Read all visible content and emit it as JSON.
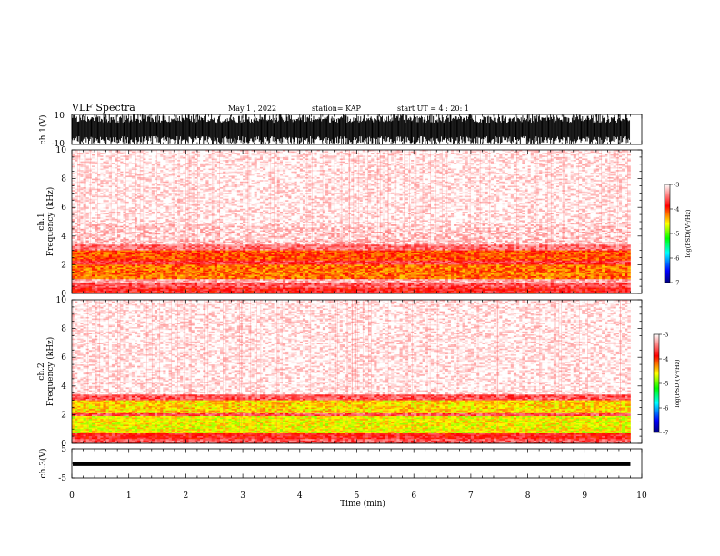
{
  "header": {
    "title": "VLF Spectra",
    "date": "May 1 , 2022",
    "station": "station= KAP",
    "start": "start  UT =   4 : 20: 1"
  },
  "chart_data": [
    {
      "type": "line",
      "name": "ch1-waveform",
      "ylabel": "ch.1(V)",
      "ylim": [
        -10,
        10
      ],
      "yticks": [
        "10",
        "-10"
      ],
      "xlim": [
        0,
        10
      ],
      "x_data_end": 9.8,
      "envelope_v": [
        -10,
        10
      ],
      "description_of_signal": "saturated broadband"
    },
    {
      "type": "heatmap",
      "name": "ch1-spectrogram",
      "ylabel": "ch.1\nFrequency  (kHz)",
      "ylim": [
        0,
        10
      ],
      "yticks": [
        "0",
        "2",
        "4",
        "6",
        "8",
        "10"
      ],
      "xlim": [
        0,
        10
      ],
      "x_data_end": 9.8,
      "colorbar": {
        "label": "log(PSD)(V²/Hz)",
        "range": [
          -7,
          -3
        ],
        "ticks": [
          "-3",
          "-4",
          "-5",
          "-6",
          "-7"
        ]
      },
      "bands_khz": [
        {
          "from": 0.0,
          "to": 0.35,
          "level": -3.8
        },
        {
          "from": 0.35,
          "to": 0.7,
          "level": -3.6
        },
        {
          "from": 0.7,
          "to": 1.0,
          "level": -3.3
        },
        {
          "from": 1.0,
          "to": 2.0,
          "level": -4.2
        },
        {
          "from": 2.0,
          "to": 2.3,
          "level": -3.7
        },
        {
          "from": 2.3,
          "to": 3.0,
          "level": -4.1
        },
        {
          "from": 3.0,
          "to": 3.4,
          "level": -3.5
        },
        {
          "from": 3.4,
          "to": 3.7,
          "level": -3.2
        },
        {
          "from": 3.7,
          "to": 4.8,
          "level": -3.15
        },
        {
          "from": 4.8,
          "to": 10.0,
          "level": -3.05
        }
      ]
    },
    {
      "type": "heatmap",
      "name": "ch2-spectrogram",
      "ylabel": "ch.2\nFrequency  (kHz)",
      "ylim": [
        0,
        10
      ],
      "yticks": [
        "0",
        "2",
        "4",
        "6",
        "8",
        "10"
      ],
      "xlim": [
        0,
        10
      ],
      "x_data_end": 9.8,
      "colorbar": {
        "label": "log(PSD)(V²/Hz)",
        "range": [
          -7,
          -3
        ],
        "ticks": [
          "-3",
          "-4",
          "-5",
          "-6",
          "-7"
        ]
      },
      "bands_khz": [
        {
          "from": 0.0,
          "to": 0.3,
          "level": -3.6
        },
        {
          "from": 0.3,
          "to": 0.7,
          "level": -3.8
        },
        {
          "from": 0.7,
          "to": 1.9,
          "level": -4.6
        },
        {
          "from": 1.9,
          "to": 2.1,
          "level": -3.6
        },
        {
          "from": 2.1,
          "to": 3.0,
          "level": -4.5
        },
        {
          "from": 3.0,
          "to": 3.4,
          "level": -3.6
        },
        {
          "from": 3.4,
          "to": 10.0,
          "level": -3.05
        }
      ]
    },
    {
      "type": "line",
      "name": "ch3-waveform",
      "ylabel": "ch.3(V)",
      "ylim": [
        -5,
        5
      ],
      "yticks": [
        "5",
        "0",
        "-5"
      ],
      "xlim": [
        0,
        10
      ],
      "x_data_end": 9.8,
      "envelope_v": [
        -0.9,
        0.6
      ]
    }
  ],
  "xaxis": {
    "label": "Time  (min)",
    "ticks": [
      "0",
      "1",
      "2",
      "3",
      "4",
      "5",
      "6",
      "7",
      "8",
      "9",
      "10"
    ]
  }
}
